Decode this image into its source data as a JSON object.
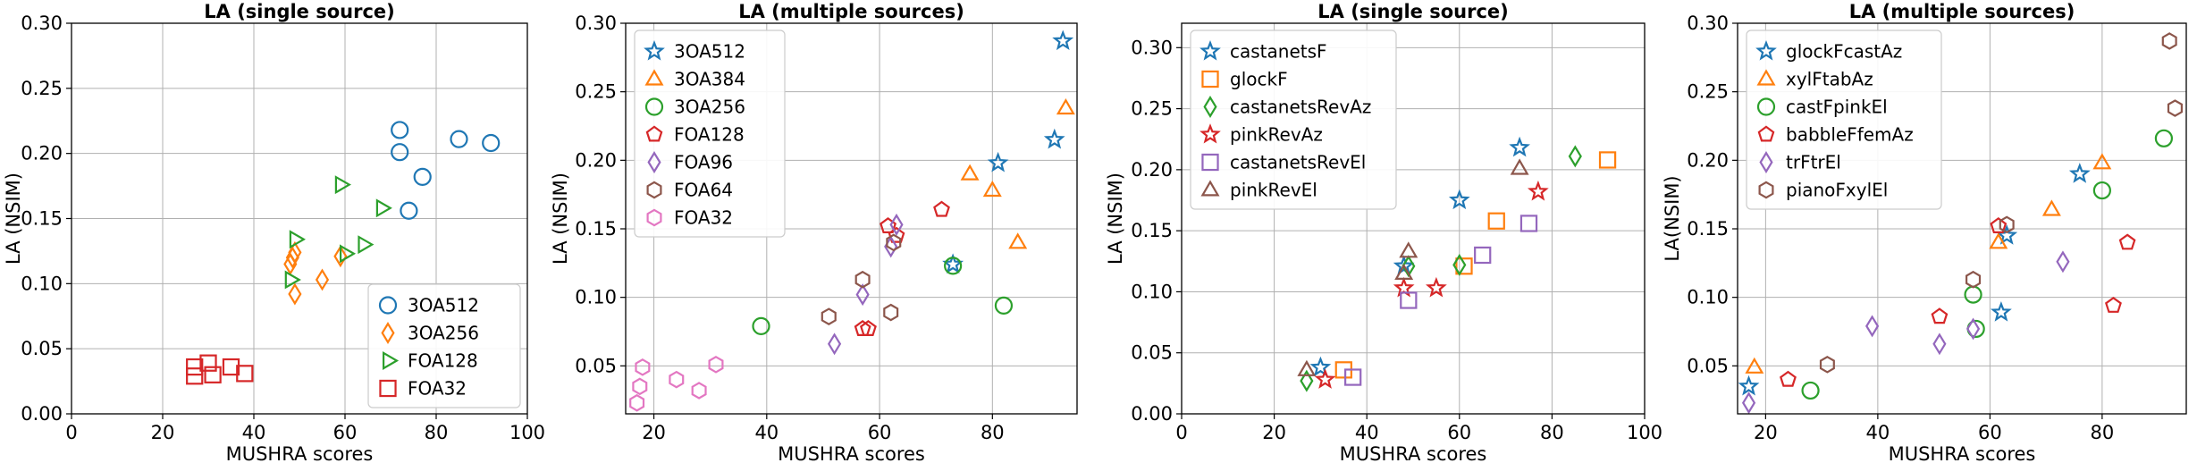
{
  "chart_data": [
    {
      "type": "scatter",
      "title": "LA (single source)",
      "xlabel": "MUSHRA scores",
      "ylabel": "LA (NSIM)",
      "xlim": [
        0,
        100
      ],
      "ylim": [
        0,
        0.3
      ],
      "xticks": [
        "0",
        "20",
        "40",
        "60",
        "80",
        "100"
      ],
      "yticks": [
        "0.00",
        "0.05",
        "0.10",
        "0.15",
        "0.20",
        "0.25",
        "0.30"
      ],
      "grid": true,
      "legend_position": "lower-right",
      "series": [
        {
          "name": "3OA512",
          "marker": "circle",
          "color": "#1f77b4",
          "points": [
            [
              72,
              0.218
            ],
            [
              72,
              0.201
            ],
            [
              74,
              0.156
            ],
            [
              77,
              0.182
            ],
            [
              85,
              0.211
            ],
            [
              92,
              0.208
            ]
          ]
        },
        {
          "name": "3OA256",
          "marker": "diamond",
          "color": "#ff7f0e",
          "points": [
            [
              48,
              0.115
            ],
            [
              48.5,
              0.12
            ],
            [
              49,
              0.092
            ],
            [
              49,
              0.124
            ],
            [
              55,
              0.103
            ],
            [
              59,
              0.121
            ]
          ]
        },
        {
          "name": "FOA128",
          "marker": "triangle-right",
          "color": "#2ca02c",
          "points": [
            [
              48,
              0.103
            ],
            [
              49,
              0.134
            ],
            [
              59,
              0.176
            ],
            [
              60,
              0.123
            ],
            [
              64,
              0.13
            ],
            [
              68,
              0.158
            ]
          ]
        },
        {
          "name": "FOA32",
          "marker": "square",
          "color": "#d62728",
          "points": [
            [
              27,
              0.029
            ],
            [
              27,
              0.036
            ],
            [
              30,
              0.039
            ],
            [
              31,
              0.03
            ],
            [
              35,
              0.036
            ],
            [
              38,
              0.031
            ]
          ]
        }
      ]
    },
    {
      "type": "scatter",
      "title": "LA (multiple sources)",
      "xlabel": "MUSHRA scores",
      "ylabel": "LA (NSIM)",
      "xlim": [
        15,
        95
      ],
      "ylim": [
        0.015,
        0.3
      ],
      "xticks": [
        "20",
        "40",
        "60",
        "80"
      ],
      "yticks": [
        "0.05",
        "0.10",
        "0.15",
        "0.20",
        "0.25",
        "0.30"
      ],
      "grid": true,
      "legend_position": "upper-left",
      "series": [
        {
          "name": "3OA512",
          "marker": "star",
          "color": "#1f77b4",
          "points": [
            [
              73,
              0.124
            ],
            [
              81,
              0.198
            ],
            [
              91,
              0.215
            ],
            [
              92.5,
              0.287
            ]
          ]
        },
        {
          "name": "3OA384",
          "marker": "triangle-up",
          "color": "#ff7f0e",
          "points": [
            [
              76,
              0.19
            ],
            [
              80,
              0.178
            ],
            [
              84.5,
              0.14
            ],
            [
              93,
              0.238
            ]
          ]
        },
        {
          "name": "3OA256",
          "marker": "circle",
          "color": "#2ca02c",
          "points": [
            [
              39,
              0.079
            ],
            [
              73,
              0.123
            ],
            [
              82,
              0.094
            ]
          ]
        },
        {
          "name": "FOA128",
          "marker": "pentagon",
          "color": "#d62728",
          "points": [
            [
              57,
              0.077
            ],
            [
              58,
              0.077
            ],
            [
              61.5,
              0.152
            ],
            [
              63,
              0.145
            ],
            [
              71,
              0.164
            ]
          ]
        },
        {
          "name": "FOA96",
          "marker": "diamond",
          "color": "#9467bd",
          "points": [
            [
              52,
              0.066
            ],
            [
              57,
              0.102
            ],
            [
              62,
              0.137
            ],
            [
              63,
              0.153
            ]
          ]
        },
        {
          "name": "FOA64",
          "marker": "hexagon",
          "color": "#8c564b",
          "points": [
            [
              51,
              0.086
            ],
            [
              57,
              0.113
            ],
            [
              62,
              0.089
            ],
            [
              62.5,
              0.14
            ]
          ]
        },
        {
          "name": "FOA32",
          "marker": "hexagon",
          "color": "#e377c2",
          "points": [
            [
              17,
              0.023
            ],
            [
              17.5,
              0.035
            ],
            [
              18,
              0.049
            ],
            [
              24,
              0.04
            ],
            [
              28,
              0.032
            ],
            [
              31,
              0.051
            ]
          ]
        }
      ]
    },
    {
      "type": "scatter",
      "title": "LA (single source)",
      "xlabel": "MUSHRA scores",
      "ylabel": "LA (NSIM)",
      "xlim": [
        0,
        100
      ],
      "ylim": [
        0,
        0.32
      ],
      "xticks": [
        "0",
        "20",
        "40",
        "60",
        "80",
        "100"
      ],
      "yticks": [
        "0.00",
        "0.05",
        "0.10",
        "0.15",
        "0.20",
        "0.25",
        "0.30"
      ],
      "grid": true,
      "legend_position": "upper-left",
      "series": [
        {
          "name": "castanetsF",
          "marker": "star",
          "color": "#1f77b4",
          "points": [
            [
              30,
              0.038
            ],
            [
              48,
              0.121
            ],
            [
              60,
              0.175
            ],
            [
              73,
              0.218
            ]
          ]
        },
        {
          "name": "glockF",
          "marker": "square",
          "color": "#ff7f0e",
          "points": [
            [
              35,
              0.036
            ],
            [
              61,
              0.121
            ],
            [
              68,
              0.158
            ],
            [
              92,
              0.208
            ]
          ]
        },
        {
          "name": "castanetsRevAz",
          "marker": "diamond",
          "color": "#2ca02c",
          "points": [
            [
              27,
              0.027
            ],
            [
              49,
              0.121
            ],
            [
              60,
              0.122
            ],
            [
              85,
              0.211
            ]
          ]
        },
        {
          "name": "pinkRevAz",
          "marker": "star",
          "color": "#d62728",
          "points": [
            [
              31,
              0.028
            ],
            [
              48,
              0.103
            ],
            [
              55,
              0.103
            ],
            [
              77,
              0.182
            ]
          ]
        },
        {
          "name": "castanetsRevEl",
          "marker": "square",
          "color": "#9467bd",
          "points": [
            [
              37,
              0.03
            ],
            [
              49,
              0.093
            ],
            [
              65,
              0.13
            ],
            [
              75,
              0.156
            ]
          ]
        },
        {
          "name": "pinkRevEl",
          "marker": "triangle-up",
          "color": "#8c564b",
          "points": [
            [
              27,
              0.036
            ],
            [
              48,
              0.115
            ],
            [
              49,
              0.133
            ],
            [
              73,
              0.201
            ]
          ]
        }
      ]
    },
    {
      "type": "scatter",
      "title": "LA (multiple sources)",
      "xlabel": "MUSHRA scores",
      "ylabel": "LA(NSIM)",
      "xlim": [
        15,
        95
      ],
      "ylim": [
        0.015,
        0.3
      ],
      "xticks": [
        "20",
        "40",
        "60",
        "80"
      ],
      "yticks": [
        "0.05",
        "0.10",
        "0.15",
        "0.20",
        "0.25",
        "0.30"
      ],
      "grid": true,
      "legend_position": "upper-left",
      "series": [
        {
          "name": "glockFcastAz",
          "marker": "star",
          "color": "#1f77b4",
          "points": [
            [
              17,
              0.035
            ],
            [
              62,
              0.089
            ],
            [
              63,
              0.145
            ],
            [
              76,
              0.19
            ]
          ]
        },
        {
          "name": "xylFtabAz",
          "marker": "triangle-up",
          "color": "#ff7f0e",
          "points": [
            [
              18,
              0.049
            ],
            [
              61.5,
              0.14
            ],
            [
              71,
              0.164
            ],
            [
              80,
              0.198
            ]
          ]
        },
        {
          "name": "castFpinkEl",
          "marker": "circle",
          "color": "#2ca02c",
          "points": [
            [
              28,
              0.032
            ],
            [
              57,
              0.102
            ],
            [
              57.5,
              0.077
            ],
            [
              80,
              0.178
            ],
            [
              91,
              0.216
            ]
          ]
        },
        {
          "name": "babbleFfemAz",
          "marker": "pentagon",
          "color": "#d62728",
          "points": [
            [
              24,
              0.04
            ],
            [
              51,
              0.086
            ],
            [
              61.5,
              0.152
            ],
            [
              82,
              0.094
            ],
            [
              84.5,
              0.14
            ]
          ]
        },
        {
          "name": "trFtrEl",
          "marker": "diamond",
          "color": "#9467bd",
          "points": [
            [
              17,
              0.023
            ],
            [
              39,
              0.079
            ],
            [
              51,
              0.066
            ],
            [
              57,
              0.077
            ],
            [
              73,
              0.126
            ]
          ]
        },
        {
          "name": "pianoFxylEl",
          "marker": "hexagon",
          "color": "#8c564b",
          "points": [
            [
              31,
              0.051
            ],
            [
              57,
              0.113
            ],
            [
              63,
              0.153
            ],
            [
              92,
              0.287
            ],
            [
              93,
              0.238
            ]
          ]
        }
      ]
    }
  ]
}
